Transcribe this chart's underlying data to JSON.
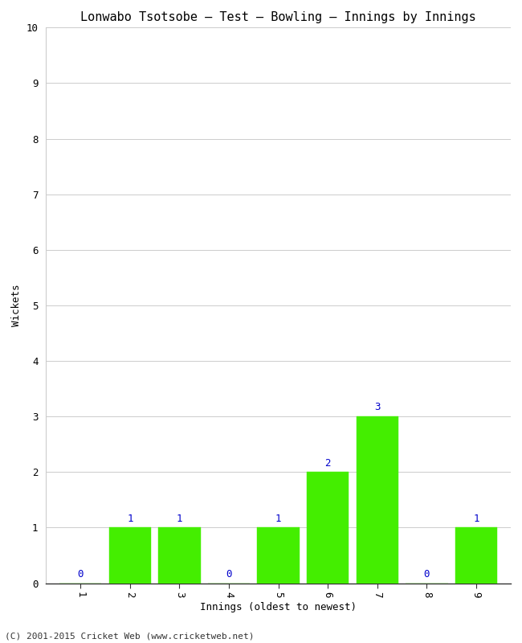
{
  "title": "Lonwabo Tsotsobe – Test – Bowling – Innings by Innings",
  "xlabel": "Innings (oldest to newest)",
  "ylabel": "Wickets",
  "innings": [
    1,
    2,
    3,
    4,
    5,
    6,
    7,
    8,
    9
  ],
  "wickets": [
    0,
    1,
    1,
    0,
    1,
    2,
    3,
    0,
    1
  ],
  "bar_color": "#44ee00",
  "bar_edge_color": "#44ee00",
  "ylim": [
    0,
    10
  ],
  "yticks": [
    0,
    1,
    2,
    3,
    4,
    5,
    6,
    7,
    8,
    9,
    10
  ],
  "xticks": [
    1,
    2,
    3,
    4,
    5,
    6,
    7,
    8,
    9
  ],
  "label_color": "#0000cc",
  "background_color": "#ffffff",
  "plot_bg_color": "#ffffff",
  "title_fontsize": 11,
  "axis_label_fontsize": 9,
  "tick_fontsize": 9,
  "annotation_fontsize": 9,
  "footer": "(C) 2001-2015 Cricket Web (www.cricketweb.net)"
}
